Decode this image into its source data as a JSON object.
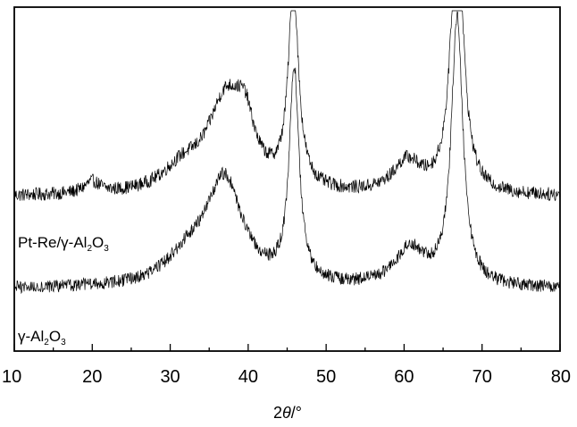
{
  "chart_data": {
    "type": "line",
    "title": "",
    "xlabel": {
      "base": "2",
      "theta": "θ",
      "unit": "/°"
    },
    "ylabel": "",
    "xlim": [
      10,
      80
    ],
    "xticks": [
      10,
      20,
      30,
      40,
      50,
      60,
      70,
      80
    ],
    "yticks": [],
    "grid": false,
    "legend": "none",
    "series": [
      {
        "name": "Pt-Re/γ-Al2O3",
        "label_parts": [
          "Pt-Re/γ-Al",
          "2",
          "O",
          "3"
        ],
        "baseline": 0.17,
        "noise": 0.06,
        "peaks": [
          {
            "x": 20.0,
            "height": 0.1,
            "width": 1.2
          },
          {
            "x": 31.5,
            "height": 0.18,
            "width": 3.0
          },
          {
            "x": 37.2,
            "height": 0.82,
            "width": 3.0
          },
          {
            "x": 39.6,
            "height": 0.38,
            "width": 1.4
          },
          {
            "x": 45.8,
            "height": 1.75,
            "width": 0.8
          },
          {
            "x": 60.4,
            "height": 0.28,
            "width": 2.2
          },
          {
            "x": 66.8,
            "height": 2.45,
            "width": 0.95
          }
        ]
      },
      {
        "name": "γ-Al2O3",
        "label_parts": [
          "γ-Al",
          "2",
          "O",
          "3"
        ],
        "baseline": 0.15,
        "noise": 0.06,
        "peaks": [
          {
            "x": 32.5,
            "height": 0.25,
            "width": 3.5
          },
          {
            "x": 37.0,
            "height": 0.95,
            "width": 2.8
          },
          {
            "x": 45.9,
            "height": 1.95,
            "width": 0.75
          },
          {
            "x": 60.8,
            "height": 0.35,
            "width": 2.3
          },
          {
            "x": 66.8,
            "height": 2.45,
            "width": 0.9
          }
        ]
      }
    ]
  }
}
